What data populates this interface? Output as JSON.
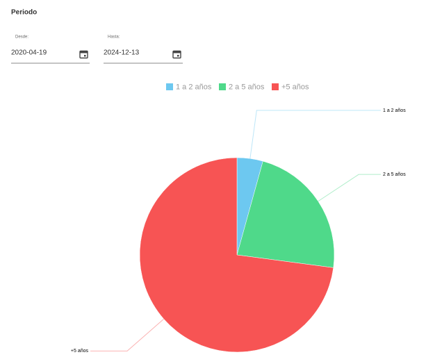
{
  "header": {
    "title": "Periodo"
  },
  "fields": [
    {
      "label": "Desde:",
      "value": "2020-04-19"
    },
    {
      "label": "Hasta:",
      "value": "2024-12-13"
    }
  ],
  "chart_data": {
    "type": "pie",
    "categories": [
      "1 a 2 años",
      "2 a 5 años",
      "+5 años"
    ],
    "values": [
      4.3,
      22.8,
      72.9
    ],
    "colors": [
      "#6dc8f0",
      "#4fd98a",
      "#f75454"
    ],
    "legend": "top"
  }
}
